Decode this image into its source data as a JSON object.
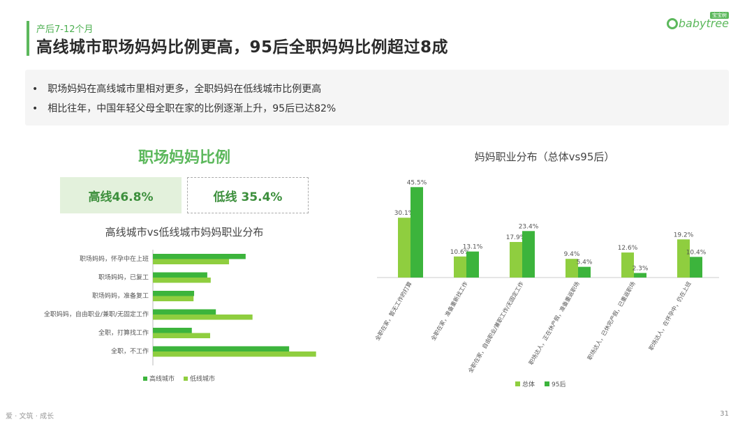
{
  "header": {
    "subtitle": "产后7-12个月",
    "title": "高线城市职场妈妈比例更高，95后全职妈妈比例超过8成",
    "logo_text": "babytree",
    "logo_tag": "宝宝树"
  },
  "bullets": [
    "职场妈妈在高线城市里相对更多，全职妈妈在低线城市比例更高",
    "相比往年，中国年轻父母全职在家的比例逐渐上升，95后已达82%"
  ],
  "left_panel": {
    "ratio_title": "职场妈妈比例",
    "high_label": "高线46.8%",
    "low_label": "低线 35.4%"
  },
  "colors": {
    "dark_green": "#3cb43c",
    "light_green": "#8fce3f",
    "accent": "#5cb85c"
  },
  "chart_data": [
    {
      "type": "bar",
      "orientation": "horizontal",
      "title": "高线城市vs低线城市妈妈职业分布",
      "categories": [
        "职场妈妈，怀孕中在上班",
        "职场妈妈，已复工",
        "职场妈妈，准备复工",
        "全职妈妈，自由职业/兼职/无固定工作",
        "全职，打算找工作",
        "全职，不工作"
      ],
      "series": [
        {
          "name": "高线城市",
          "values": [
            16.2,
            9.5,
            7.2,
            11.0,
            6.8,
            23.8
          ]
        },
        {
          "name": "低线城市",
          "values": [
            13.3,
            10.1,
            7.1,
            17.4,
            10.0,
            28.5
          ]
        }
      ],
      "legend": "bottom"
    },
    {
      "type": "bar",
      "orientation": "vertical",
      "title": "妈妈职业分布（总体vs95后）",
      "categories": [
        "全职在家，暂无工作的打算",
        "全职在家，准备重新找工作",
        "全职在家，自由职业/兼职工作/无固定工作",
        "职场达人，正在休产假，准备重返职场",
        "职场达人，已休完产假，已重返职场",
        "职场达人，在怀孕中，仍在上班"
      ],
      "series": [
        {
          "name": "总体",
          "values": [
            30.1,
            10.6,
            17.9,
            9.4,
            12.6,
            19.2
          ],
          "labels": [
            "30.1%",
            "10.6%",
            "17.9%",
            "9.4%",
            "12.6%",
            "19.2%"
          ]
        },
        {
          "name": "95后",
          "values": [
            45.5,
            13.1,
            23.4,
            5.4,
            2.3,
            10.4
          ],
          "labels": [
            "45.5%",
            "13.1%",
            "23.4%",
            "5.4%",
            "2.3%",
            "10.4%"
          ]
        }
      ],
      "legend": "bottom"
    }
  ],
  "footer": {
    "left_text": "爱 · 文筑 · 成长",
    "page": "31"
  }
}
